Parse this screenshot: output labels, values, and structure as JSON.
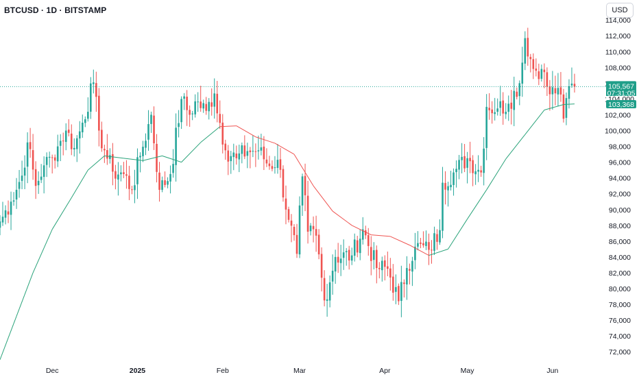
{
  "header": {
    "title": "BTCUSD · 1D · BITSTAMP",
    "currency_button": "USD"
  },
  "price_scale": {
    "current_price_label": "105,567",
    "countdown_label": "07:31:05",
    "ma_label_1": "104,000",
    "ma_label_2": "103,368"
  },
  "colors": {
    "up": "#26a69a",
    "down": "#ef5350",
    "ma_green": "#2aa37a",
    "ma_red": "#ef5350",
    "last_price_line": "#26a69a",
    "price_tag_bg": "#1f9e89"
  },
  "chart_data": {
    "type": "candlestick",
    "title": "BTCUSD · 1D · BITSTAMP",
    "currency": "USD",
    "ylim": [
      71000,
      115000
    ],
    "y_ticks": [
      72000,
      74000,
      76000,
      78000,
      80000,
      82000,
      84000,
      86000,
      88000,
      90000,
      92000,
      94000,
      96000,
      98000,
      100000,
      102000,
      104000,
      106000,
      108000,
      110000,
      112000,
      114000
    ],
    "y_tick_labels": [
      "72,000",
      "74,000",
      "76,000",
      "78,000",
      "80,000",
      "82,000",
      "84,000",
      "86,000",
      "88,000",
      "90,000",
      "92,000",
      "94,000",
      "96,000",
      "98,000",
      "100,000",
      "102,000",
      "104,000",
      "106,000",
      "108,000",
      "110,000",
      "112,000",
      "114,000"
    ],
    "x_range": [
      "2024-11-12",
      "2025-06-12"
    ],
    "x_ticks": [
      {
        "date": "2024-12-01",
        "label": "Dec"
      },
      {
        "date": "2025-01-01",
        "label": "2025"
      },
      {
        "date": "2025-02-01",
        "label": "Feb"
      },
      {
        "date": "2025-03-01",
        "label": "Mar"
      },
      {
        "date": "2025-04-01",
        "label": "Apr"
      },
      {
        "date": "2025-05-01",
        "label": "May"
      },
      {
        "date": "2025-06-01",
        "label": "Jun"
      }
    ],
    "last_price": 105567,
    "closes": [
      {
        "date": "2024-11-12",
        "close": 88500
      },
      {
        "date": "2024-11-16",
        "close": 91000
      },
      {
        "date": "2024-11-20",
        "close": 94300
      },
      {
        "date": "2024-11-22",
        "close": 98500
      },
      {
        "date": "2024-11-25",
        "close": 93000
      },
      {
        "date": "2024-11-28",
        "close": 95600
      },
      {
        "date": "2024-12-01",
        "close": 96600
      },
      {
        "date": "2024-12-04",
        "close": 98700
      },
      {
        "date": "2024-12-06",
        "close": 100000
      },
      {
        "date": "2024-12-09",
        "close": 97800
      },
      {
        "date": "2024-12-12",
        "close": 101000
      },
      {
        "date": "2024-12-16",
        "close": 106100
      },
      {
        "date": "2024-12-18",
        "close": 100000
      },
      {
        "date": "2024-12-20",
        "close": 97500
      },
      {
        "date": "2024-12-23",
        "close": 94800
      },
      {
        "date": "2024-12-27",
        "close": 94500
      },
      {
        "date": "2024-12-30",
        "close": 92500
      },
      {
        "date": "2025-01-02",
        "close": 96800
      },
      {
        "date": "2025-01-06",
        "close": 102000
      },
      {
        "date": "2025-01-09",
        "close": 92500
      },
      {
        "date": "2025-01-13",
        "close": 94500
      },
      {
        "date": "2025-01-17",
        "close": 104000
      },
      {
        "date": "2025-01-20",
        "close": 102000
      },
      {
        "date": "2025-01-22",
        "close": 103700
      },
      {
        "date": "2025-01-26",
        "close": 102500
      },
      {
        "date": "2025-01-29",
        "close": 104700
      },
      {
        "date": "2025-02-02",
        "close": 97500
      },
      {
        "date": "2025-02-06",
        "close": 96500
      },
      {
        "date": "2025-02-10",
        "close": 97400
      },
      {
        "date": "2025-02-14",
        "close": 97500
      },
      {
        "date": "2025-02-18",
        "close": 95500
      },
      {
        "date": "2025-02-21",
        "close": 96300
      },
      {
        "date": "2025-02-25",
        "close": 88700
      },
      {
        "date": "2025-02-28",
        "close": 84400
      },
      {
        "date": "2025-03-02",
        "close": 94200
      },
      {
        "date": "2025-03-04",
        "close": 87200
      },
      {
        "date": "2025-03-07",
        "close": 86700
      },
      {
        "date": "2025-03-10",
        "close": 78500
      },
      {
        "date": "2025-03-14",
        "close": 84000
      },
      {
        "date": "2025-03-20",
        "close": 84200
      },
      {
        "date": "2025-03-24",
        "close": 87500
      },
      {
        "date": "2025-03-29",
        "close": 82600
      },
      {
        "date": "2025-04-02",
        "close": 82500
      },
      {
        "date": "2025-04-06",
        "close": 78400
      },
      {
        "date": "2025-04-09",
        "close": 82600
      },
      {
        "date": "2025-04-12",
        "close": 85300
      },
      {
        "date": "2025-04-17",
        "close": 84900
      },
      {
        "date": "2025-04-21",
        "close": 87400
      },
      {
        "date": "2025-04-22",
        "close": 93400
      },
      {
        "date": "2025-04-26",
        "close": 94700
      },
      {
        "date": "2025-05-01",
        "close": 96500
      },
      {
        "date": "2025-05-06",
        "close": 94700
      },
      {
        "date": "2025-05-08",
        "close": 103000
      },
      {
        "date": "2025-05-12",
        "close": 102800
      },
      {
        "date": "2025-05-16",
        "close": 103400
      },
      {
        "date": "2025-05-20",
        "close": 106000
      },
      {
        "date": "2025-05-22",
        "close": 111700
      },
      {
        "date": "2025-05-25",
        "close": 107800
      },
      {
        "date": "2025-05-28",
        "close": 107800
      },
      {
        "date": "2025-05-31",
        "close": 104600
      },
      {
        "date": "2025-06-03",
        "close": 105400
      },
      {
        "date": "2025-06-05",
        "close": 101500
      },
      {
        "date": "2025-06-07",
        "close": 105600
      },
      {
        "date": "2025-06-09",
        "close": 105567
      }
    ],
    "moving_average": [
      {
        "date": "2024-11-12",
        "value": 71000
      },
      {
        "date": "2024-11-18",
        "value": 76500
      },
      {
        "date": "2024-11-24",
        "value": 82000
      },
      {
        "date": "2024-12-01",
        "value": 87500
      },
      {
        "date": "2024-12-08",
        "value": 91500
      },
      {
        "date": "2024-12-14",
        "value": 95000
      },
      {
        "date": "2024-12-20",
        "value": 96800
      },
      {
        "date": "2024-12-27",
        "value": 96500
      },
      {
        "date": "2025-01-03",
        "value": 96200
      },
      {
        "date": "2025-01-10",
        "value": 96800
      },
      {
        "date": "2025-01-17",
        "value": 96000
      },
      {
        "date": "2025-01-24",
        "value": 98500
      },
      {
        "date": "2025-01-31",
        "value": 100500
      },
      {
        "date": "2025-02-06",
        "value": 100600
      },
      {
        "date": "2025-02-13",
        "value": 99200
      },
      {
        "date": "2025-02-20",
        "value": 98400
      },
      {
        "date": "2025-02-27",
        "value": 97000
      },
      {
        "date": "2025-03-06",
        "value": 93000
      },
      {
        "date": "2025-03-13",
        "value": 89800
      },
      {
        "date": "2025-03-20",
        "value": 88000
      },
      {
        "date": "2025-03-27",
        "value": 86800
      },
      {
        "date": "2025-04-03",
        "value": 86600
      },
      {
        "date": "2025-04-10",
        "value": 85500
      },
      {
        "date": "2025-04-17",
        "value": 84200
      },
      {
        "date": "2025-04-24",
        "value": 85000
      },
      {
        "date": "2025-05-01",
        "value": 88800
      },
      {
        "date": "2025-05-08",
        "value": 92500
      },
      {
        "date": "2025-05-15",
        "value": 96400
      },
      {
        "date": "2025-05-22",
        "value": 99500
      },
      {
        "date": "2025-05-29",
        "value": 102600
      },
      {
        "date": "2025-06-05",
        "value": 103300
      },
      {
        "date": "2025-06-09",
        "value": 103368
      }
    ],
    "ma_red_from": "2025-02-01",
    "ma_red_until": "2025-04-20"
  }
}
